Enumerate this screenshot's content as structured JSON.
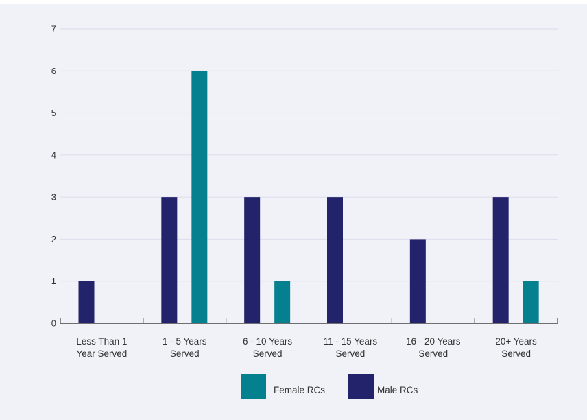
{
  "chart_data": {
    "type": "bar",
    "categories": [
      [
        "Less Than 1",
        "Year Served"
      ],
      [
        "1 - 5 Years",
        "Served"
      ],
      [
        "6 - 10 Years",
        "Served"
      ],
      [
        "11 - 15 Years",
        "Served"
      ],
      [
        "16 - 20 Years",
        "Served"
      ],
      [
        "20+ Years",
        "Served"
      ]
    ],
    "series": [
      {
        "name": "Male RCs",
        "color": "#22236a",
        "values": [
          1,
          3,
          3,
          3,
          2,
          3
        ]
      },
      {
        "name": "Female RCs",
        "color": "#05808f",
        "values": [
          0,
          6,
          1,
          0,
          0,
          1
        ]
      }
    ],
    "legend_order": [
      "Female RCs",
      "Male RCs"
    ],
    "yticks": [
      0,
      1,
      2,
      3,
      4,
      5,
      6,
      7
    ],
    "ylim": [
      0,
      7
    ],
    "grid": true,
    "legend_position": "bottom-center",
    "title": "",
    "xlabel": "",
    "ylabel": ""
  }
}
